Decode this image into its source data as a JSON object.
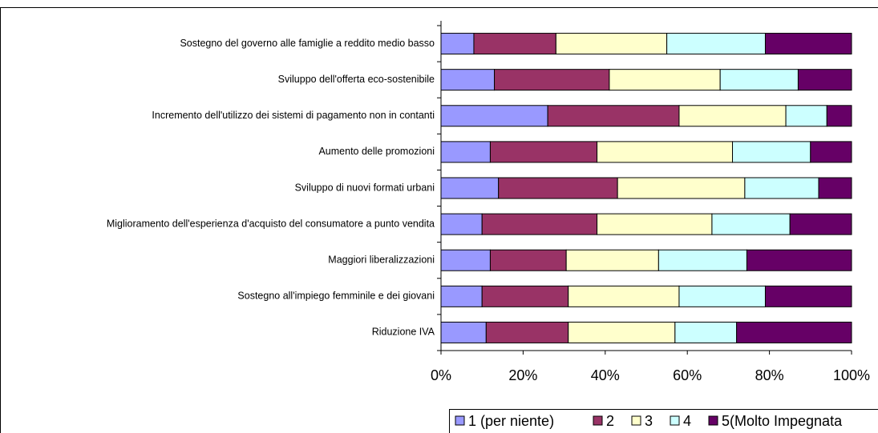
{
  "chart_data": {
    "type": "bar",
    "orientation": "horizontal",
    "stacked": true,
    "categories": [
      "Sostegno del governo alle famiglie a reddito medio basso",
      "Sviluppo dell'offerta eco-sostenibile",
      "Incremento dell'utilizzo dei sistemi di pagamento non in contanti",
      "Aumento delle promozioni",
      "Sviluppo di nuovi formati urbani",
      "Miglioramento dell'esperienza d'acquisto del consumatore a punto vendita",
      "Maggiori liberalizzazioni",
      "Sostegno all'impiego femminile e dei giovani",
      "Riduzione IVA"
    ],
    "series": [
      {
        "name": "1 (per niente)",
        "color": "#9999ff",
        "values": [
          8,
          13,
          26,
          12,
          14,
          10,
          12,
          10,
          11
        ]
      },
      {
        "name": "2",
        "color": "#993366",
        "values": [
          20,
          28,
          32,
          26,
          29,
          28,
          18.5,
          21,
          20
        ]
      },
      {
        "name": "3",
        "color": "#ffffcc",
        "values": [
          27,
          27,
          26,
          33,
          31,
          28,
          22.5,
          27,
          26
        ]
      },
      {
        "name": "4",
        "color": "#ccffff",
        "values": [
          24,
          19,
          10,
          19,
          18,
          19,
          21.5,
          21,
          15
        ]
      },
      {
        "name": "5(Molto Impegnata",
        "color": "#660066",
        "values": [
          21,
          13,
          6,
          10,
          8,
          15,
          25.5,
          21,
          28
        ]
      }
    ],
    "xlim": [
      0,
      100
    ],
    "xticks": [
      {
        "value": 0,
        "label": "0%"
      },
      {
        "value": 20,
        "label": "20%"
      },
      {
        "value": 40,
        "label": "40%"
      },
      {
        "value": 60,
        "label": "60%"
      },
      {
        "value": 80,
        "label": "80%"
      },
      {
        "value": 100,
        "label": "100%"
      }
    ],
    "legend": "bottom-right"
  }
}
